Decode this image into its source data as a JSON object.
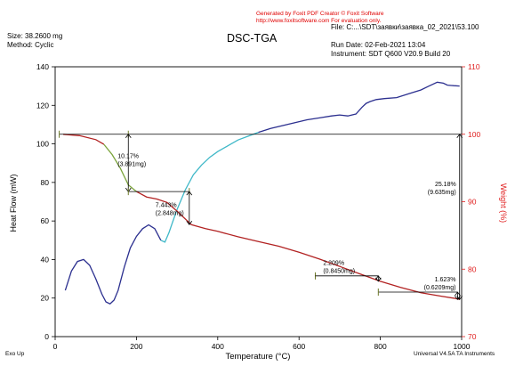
{
  "watermark": {
    "line1": "Generated by Foxit PDF Creator © Foxit Software",
    "line2": "http://www.foxitsoftware.com   For evaluation only.",
    "color": "#e00000"
  },
  "header": {
    "size": "Size:  38.2600 mg",
    "method": "Method: Cyclic",
    "file": "File: C:...\\SDT\\заявки\\заявка_02_2021\\53.100",
    "run_date": "Run Date: 02-Feb-2021 13:04",
    "instrument": "Instrument: SDT Q600 V20.9 Build 20"
  },
  "footer": {
    "exo_up": "Exo Up",
    "universal": "Universal V4.5A TA Instruments"
  },
  "colors": {
    "heat_flow_line": "#2b2f8f",
    "heat_flow_rising": "#3fb8c8",
    "weight_line": "#b22222",
    "weight_early": "#7aa33a",
    "right_axis": "#e02020",
    "annotation": "#000000",
    "marker": "#6e7a2a"
  },
  "chart_data": {
    "type": "line",
    "title": "DSC-TGA",
    "xlabel": "Temperature (°C)",
    "ylabel_left": "Heat Flow (mW)",
    "ylabel_right": "Weight (%)",
    "xlim": [
      0,
      1000
    ],
    "ylim_left": [
      0,
      140
    ],
    "ylim_right": [
      70,
      110
    ],
    "xticks": [
      0,
      200,
      400,
      600,
      800,
      1000
    ],
    "yticks_left": [
      0,
      20,
      40,
      60,
      80,
      100,
      120,
      140
    ],
    "yticks_right": [
      70,
      80,
      90,
      100,
      110
    ],
    "series": [
      {
        "axis": "left",
        "x": [
          25,
          40,
          55,
          70,
          85,
          100,
          115,
          125,
          135,
          145,
          155,
          170,
          185,
          200,
          215,
          230,
          245,
          260,
          270,
          280,
          290,
          300,
          320,
          340,
          360,
          380,
          400,
          425,
          450,
          475,
          500,
          530,
          560,
          590,
          620,
          650,
          680,
          700,
          720,
          740,
          755,
          765,
          775,
          790,
          810,
          840,
          870,
          900,
          920,
          940,
          955,
          965,
          980,
          995
        ],
        "y": [
          24,
          34,
          39,
          40,
          37,
          30,
          22,
          18,
          17,
          19,
          24,
          36,
          46,
          52,
          56,
          58,
          56,
          50,
          49,
          54,
          60,
          66,
          76,
          84,
          89,
          93,
          96,
          99,
          102,
          104,
          106,
          108,
          109.5,
          111,
          112.5,
          113.5,
          114.5,
          115,
          114.5,
          115.5,
          119,
          121,
          122,
          123,
          123.5,
          124,
          126,
          128,
          130,
          132,
          131.5,
          130.5,
          130.2,
          130
        ]
      },
      {
        "axis": "right",
        "x": [
          20,
          60,
          100,
          120,
          140,
          160,
          180,
          200,
          225,
          250,
          275,
          300,
          335,
          370,
          400,
          450,
          500,
          550,
          600,
          650,
          700,
          750,
          800,
          850,
          900,
          950,
          980,
          995
        ],
        "y": [
          100,
          99.8,
          99.2,
          98.5,
          97,
          95,
          92.5,
          91.5,
          90.7,
          90.4,
          89.9,
          88.6,
          86.6,
          86.0,
          85.6,
          84.8,
          84.1,
          83.4,
          82.5,
          81.5,
          80.4,
          79.3,
          78.2,
          77.3,
          76.5,
          76.0,
          75.7,
          75.5
        ]
      }
    ],
    "annotations": [
      {
        "text1": "10.17%",
        "text2": "(3.891mg)",
        "x": 180,
        "y_top": 100,
        "y_bottom": 91.5
      },
      {
        "text1": "7.443%",
        "text2": "(2.848mg)",
        "x": 330,
        "y_top": 91.5,
        "y_bottom": 86.6
      },
      {
        "text1": "2.209%",
        "text2": "(0.8450mg)",
        "x": 795,
        "y_top": 79.0,
        "y_bottom": 78.2
      },
      {
        "text1": "1.623%",
        "text2": "(0.6209mg)",
        "x": 990,
        "y_top": 76.6,
        "y_bottom": 75.5
      },
      {
        "text1": "25.18%",
        "text2": "(9.635mg)",
        "x": 995,
        "y_top": 100,
        "y_bottom": 75.5
      }
    ]
  }
}
